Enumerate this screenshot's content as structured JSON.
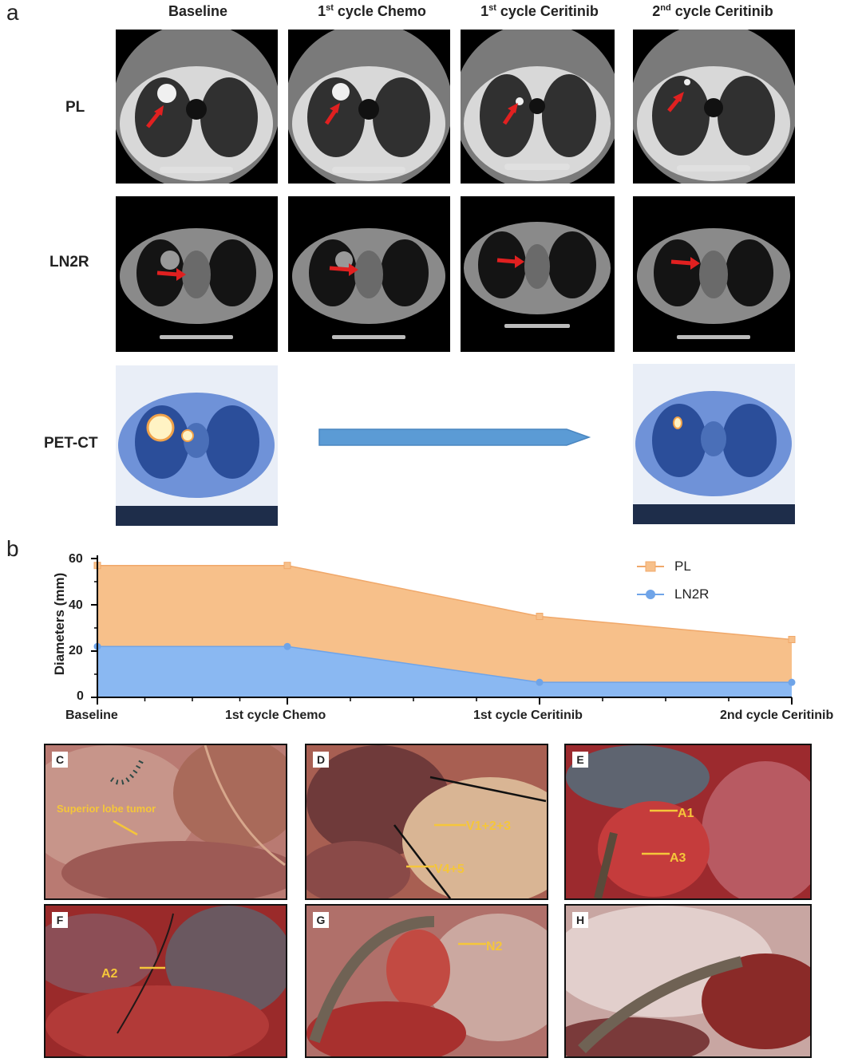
{
  "panel_a": {
    "letter": "a",
    "columns": [
      {
        "base": "Baseline",
        "sup": ""
      },
      {
        "base_pre": "1",
        "sup": "st",
        "base": " cycle Chemo"
      },
      {
        "base_pre": "1",
        "sup": "st",
        "base": " cycle Ceritinib"
      },
      {
        "base_pre": "2",
        "sup": "nd",
        "base": " cycle Ceritinib"
      }
    ],
    "rows": [
      "PL",
      "LN2R",
      "PET-CT"
    ]
  },
  "panel_b": {
    "letter": "b"
  },
  "chart_data": {
    "type": "area",
    "categories": [
      "Baseline",
      "1st cycle Chemo",
      "1st cycle Ceritinib",
      "2nd cycle Ceritinib"
    ],
    "ylabel": "Diameters (mm)",
    "ylim": [
      0,
      60
    ],
    "yticks": [
      "0",
      "20",
      "40",
      "60"
    ],
    "series": [
      {
        "name": "PL",
        "values": [
          57,
          57,
          35,
          25
        ],
        "color": "#f7c08a"
      },
      {
        "name": "LN2R",
        "values": [
          22,
          22,
          6.5,
          6.5
        ],
        "color": "#8ab8f2"
      }
    ],
    "legend": "top-right"
  },
  "photos": [
    {
      "letter": "C",
      "annotations": [
        "Superior lobe tumor"
      ]
    },
    {
      "letter": "D",
      "annotations": [
        "V1+2+3",
        "V4+5"
      ]
    },
    {
      "letter": "E",
      "annotations": [
        "A1",
        "A3"
      ]
    },
    {
      "letter": "F",
      "annotations": [
        "A2"
      ]
    },
    {
      "letter": "G",
      "annotations": [
        "N2"
      ]
    },
    {
      "letter": "H",
      "annotations": []
    }
  ],
  "colors": {
    "arrow_red": "#e02020",
    "bar_blue": "#5b9bd5",
    "pl_fill": "#f7c08a",
    "ln_fill": "#8ab8f2",
    "annotation": "#f5c63a"
  }
}
